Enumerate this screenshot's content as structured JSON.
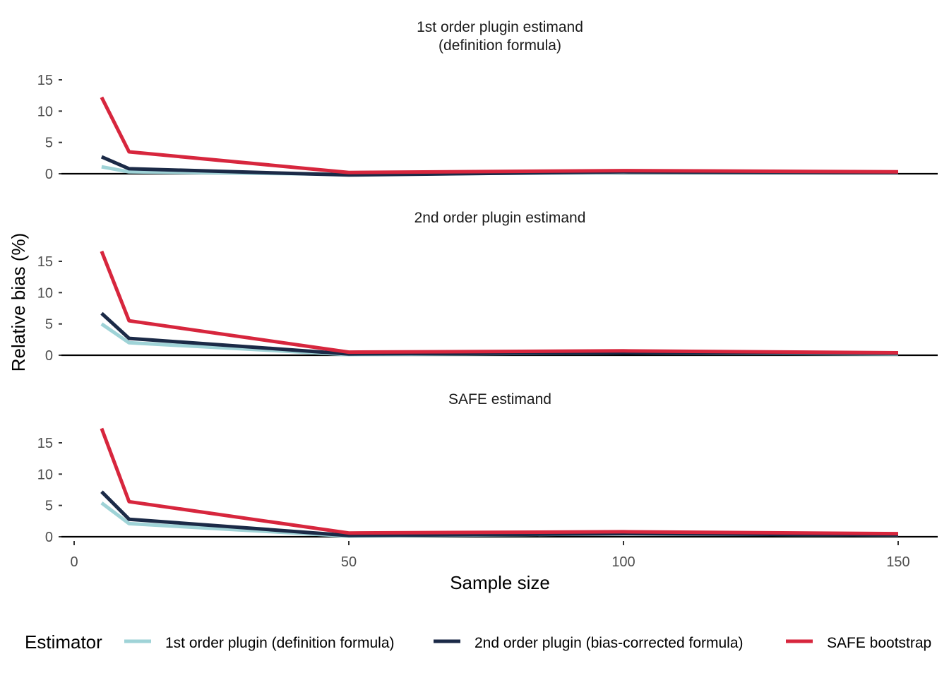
{
  "chart_data": {
    "type": "line",
    "xlabel": "Sample size",
    "ylabel": "Relative bias (%)",
    "xlim": [
      0,
      150
    ],
    "ylim": [
      0,
      18
    ],
    "x_ticks": [
      "0",
      "50",
      "100",
      "150"
    ],
    "y_ticks": [
      "0",
      "5",
      "10",
      "15"
    ],
    "grid": false,
    "legend": {
      "title": "Estimator",
      "position": "bottom",
      "entries": [
        "1st order plugin (definition formula)",
        "2nd order plugin (bias-corrected formula)",
        "SAFE bootstrap"
      ]
    },
    "colors": {
      "1st order plugin (definition formula)": "#9fd3d7",
      "2nd order plugin (bias-corrected formula)": "#1b2a47",
      "SAFE bootstrap": "#d7263d"
    },
    "x": [
      5,
      10,
      50,
      100,
      150
    ],
    "panels": [
      {
        "title": "1st order plugin estimand",
        "subtitle": "(definition formula)",
        "series": [
          {
            "name": "1st order plugin (definition formula)",
            "values": [
              1.1,
              0.3,
              -0.1,
              0.2,
              0.2
            ]
          },
          {
            "name": "2nd order plugin (bias-corrected formula)",
            "values": [
              2.7,
              0.8,
              -0.2,
              0.3,
              0.2
            ]
          },
          {
            "name": "SAFE bootstrap",
            "values": [
              12.2,
              3.5,
              0.2,
              0.5,
              0.3
            ]
          }
        ]
      },
      {
        "title": "2nd order plugin estimand",
        "subtitle": "",
        "series": [
          {
            "name": "1st order plugin (definition formula)",
            "values": [
              5.0,
              2.0,
              0.1,
              0.4,
              0.2
            ]
          },
          {
            "name": "2nd order plugin (bias-corrected formula)",
            "values": [
              6.7,
              2.7,
              0.2,
              0.4,
              0.3
            ]
          },
          {
            "name": "SAFE bootstrap",
            "values": [
              16.6,
              5.5,
              0.5,
              0.7,
              0.4
            ]
          }
        ]
      },
      {
        "title": "SAFE estimand",
        "subtitle": "",
        "series": [
          {
            "name": "1st order plugin (definition formula)",
            "values": [
              5.4,
              2.1,
              0.1,
              0.5,
              0.3
            ]
          },
          {
            "name": "2nd order plugin (bias-corrected formula)",
            "values": [
              7.2,
              2.8,
              0.2,
              0.5,
              0.3
            ]
          },
          {
            "name": "SAFE bootstrap",
            "values": [
              17.3,
              5.6,
              0.6,
              0.8,
              0.5
            ]
          }
        ]
      }
    ]
  }
}
